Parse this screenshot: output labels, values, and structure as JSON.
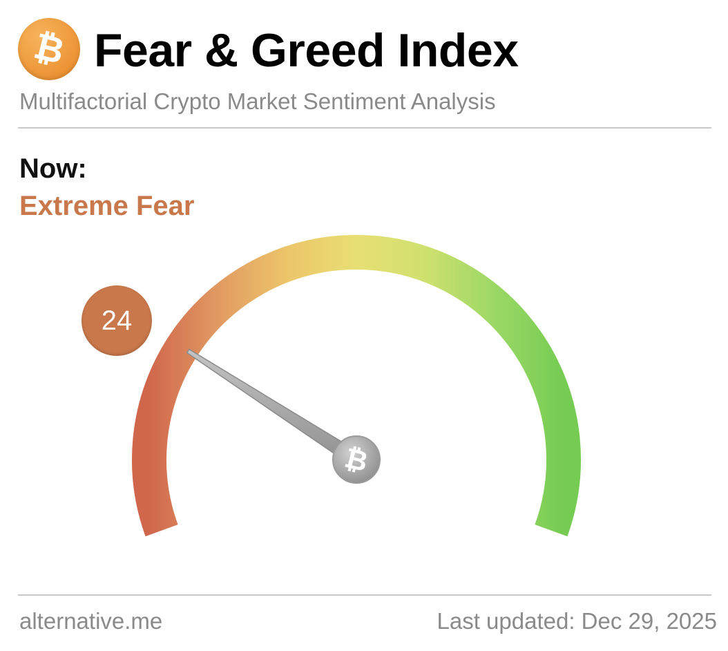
{
  "header": {
    "logo_icon": "bitcoin-icon",
    "logo_glyph": "₿",
    "title": "Fear & Greed Index",
    "subtitle": "Multifactorial Crypto Market Sentiment Analysis"
  },
  "current": {
    "label": "Now:",
    "status": "Extreme Fear",
    "value": "24",
    "index": 24,
    "scale": [
      0,
      100
    ],
    "status_color": "#c8784a"
  },
  "gauge": {
    "colors": [
      "#d0674d",
      "#e19a62",
      "#ecc56a",
      "#e8df74",
      "#cfe06f",
      "#9bd866",
      "#76cc52"
    ],
    "needle_color": "#a9a9a9",
    "hub_icon": "bitcoin-icon",
    "hub_glyph": "₿"
  },
  "footer": {
    "source": "alternative.me",
    "updated": "Last updated: Dec 29, 2025"
  }
}
